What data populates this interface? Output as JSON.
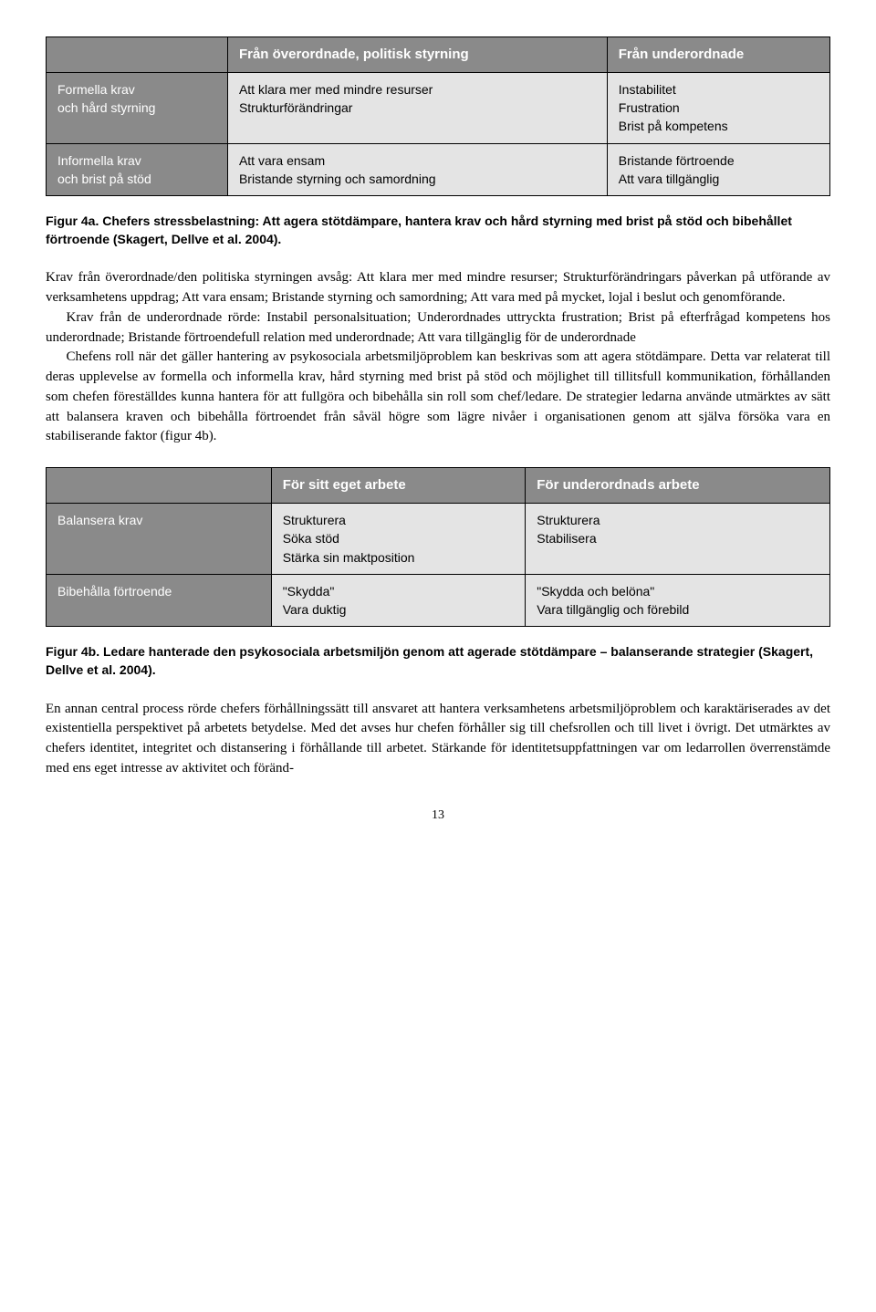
{
  "table1": {
    "header_empty": "",
    "header_col1": "Från överordnade, politisk styrning",
    "header_col2": "Från underordnade",
    "row1_head_l1": "Formella krav",
    "row1_head_l2": "och hård styrning",
    "row1_c1_l1": "Att klara mer med mindre resurser",
    "row1_c1_l2": "Strukturförändringar",
    "row1_c2_l1": "Instabilitet",
    "row1_c2_l2": "Frustration",
    "row1_c2_l3": "Brist på kompetens",
    "row2_head_l1": "Informella krav",
    "row2_head_l2": "och brist på stöd",
    "row2_c1_l1": "Att vara ensam",
    "row2_c1_l2": "Bristande styrning och samordning",
    "row2_c2_l1": "Bristande förtroende",
    "row2_c2_l2": "Att vara tillgänglig"
  },
  "caption1": "Figur 4a. Chefers stressbelastning: Att agera stötdämpare, hantera krav och hård styrning med brist på stöd och bibehållet förtroende (Skagert, Dellve et al. 2004).",
  "para1": "Krav från överordnade/den politiska styrningen avsåg: Att klara mer med mindre resurser; Strukturförändringars påverkan på utförande av verksamhetens uppdrag; Att vara ensam; Bristande styrning och samordning; Att vara med på mycket, lojal i beslut och genomförande.",
  "para2": "Krav från de underordnade rörde: Instabil personalsituation; Underordnades uttryckta frustration; Brist på efterfrågad kompetens hos underordnade; Bristande förtroendefull relation med underordnade; Att vara tillgänglig för de underordnade",
  "para3": "Chefens roll när det gäller hantering av psykosociala arbetsmiljöproblem kan beskrivas som att agera stötdämpare. Detta var relaterat till deras upplevelse av formella och informella krav, hård styrning med brist på stöd och möjlighet till tillitsfull kommunikation, förhållanden som chefen föreställdes kunna hantera för att fullgöra och bibehålla sin roll som chef/ledare. De strategier ledarna använde utmärktes av sätt att balansera kraven och bibehålla förtroendet från såväl högre som lägre nivåer i organisationen genom att själva försöka vara en stabiliserande faktor (figur 4b).",
  "table2": {
    "header_empty": "",
    "header_col1": "För sitt eget arbete",
    "header_col2": "För underordnads arbete",
    "row1_head": "Balansera krav",
    "row1_c1_l1": "Strukturera",
    "row1_c1_l2": "Söka stöd",
    "row1_c1_l3": "Stärka sin maktposition",
    "row1_c2_l1": "Strukturera",
    "row1_c2_l2": "Stabilisera",
    "row2_head": "Bibehålla förtroende",
    "row2_c1_l1": "\"Skydda\"",
    "row2_c1_l2": "Vara duktig",
    "row2_c2_l1": "\"Skydda och belöna\"",
    "row2_c2_l2": "Vara tillgänglig och förebild"
  },
  "caption2": "Figur 4b. Ledare hanterade den psykosociala arbetsmiljön genom att agerade stötdämpare – balanserande strategier (Skagert, Dellve et al. 2004).",
  "para4": "En annan central process rörde chefers förhållningssätt till ansvaret att hantera verksamhetens arbetsmiljöproblem och karaktäriserades av det existentiella perspektivet på arbetets betydelse. Med det avses hur chefen förhåller sig till chefsrollen och till livet i övrigt. Det utmärktes av chefers identitet, integritet och distansering i förhållande till arbetet. Stärkande för identitetsuppfattningen var om ledarrollen överrenstämde med ens eget intresse av aktivitet och föränd-",
  "pagenum": "13"
}
